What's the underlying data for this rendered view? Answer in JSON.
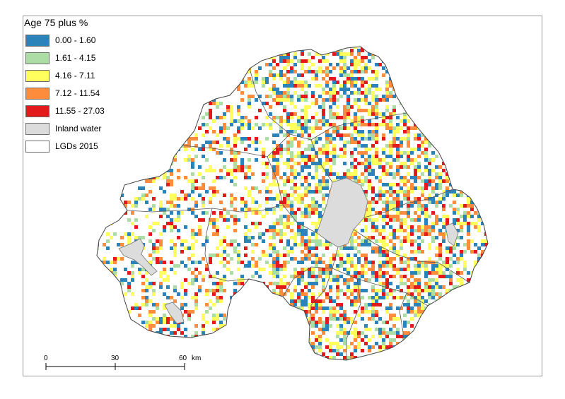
{
  "legend": {
    "title": "Age 75 plus %",
    "items": [
      {
        "label": "0.00 - 1.60",
        "color": "#2b83ba"
      },
      {
        "label": "1.61 - 4.15",
        "color": "#abdda4"
      },
      {
        "label": "4.16 - 7.11",
        "color": "#ffff5e"
      },
      {
        "label": "7.12 - 11.54",
        "color": "#fd8d3c"
      },
      {
        "label": "11.55 - 27.03",
        "color": "#e31a1c"
      },
      {
        "label": "Inland water",
        "color": "#dcdcdc"
      },
      {
        "label": "LGDs 2015",
        "color": "#ffffff"
      }
    ]
  },
  "scale_bar": {
    "ticks": [
      "0",
      "30",
      "60"
    ],
    "unit": "km"
  },
  "colors": {
    "boundary": "#555555",
    "frame": "#9a9a9a"
  }
}
